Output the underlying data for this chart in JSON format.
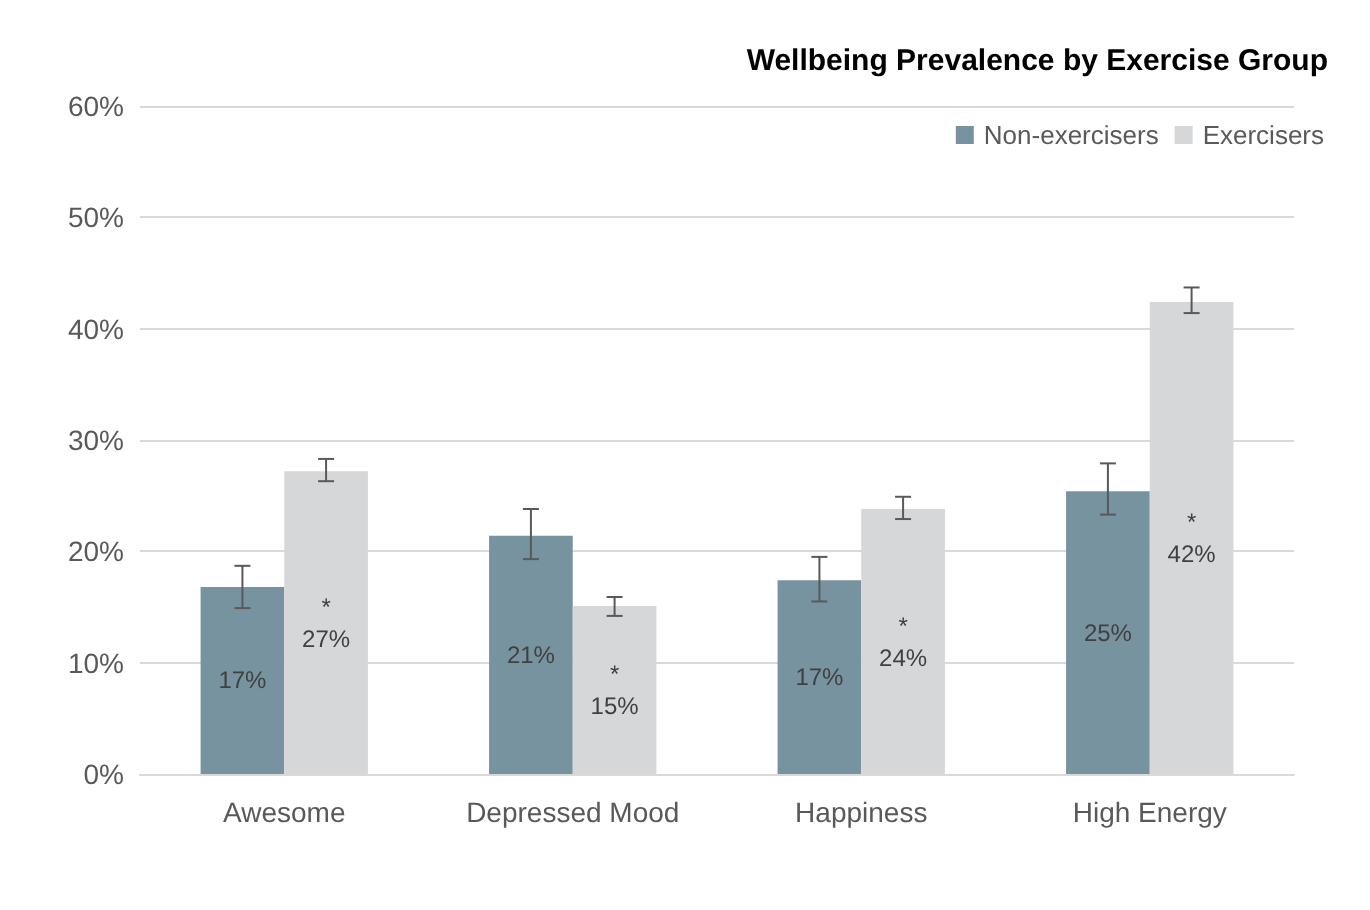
{
  "chart_data": {
    "type": "bar",
    "title": "Wellbeing Prevalence by Exercise Group",
    "categories": [
      "Awesome",
      "Depressed Mood",
      "Happiness",
      "High Energy"
    ],
    "series": [
      {
        "name": "Non-exercisers",
        "color": "#7793a0",
        "values": [
          16.8,
          21.4,
          17.4,
          25.4
        ],
        "errors": [
          [
            14.9,
            18.7
          ],
          [
            19.3,
            23.8
          ],
          [
            15.5,
            19.5
          ],
          [
            23.3,
            27.9
          ]
        ],
        "value_labels": [
          "17%",
          "21%",
          "17%",
          "25%"
        ]
      },
      {
        "name": "Exercisers",
        "color": "#d6d7d9",
        "values": [
          27.2,
          15.1,
          23.8,
          42.4
        ],
        "errors": [
          [
            26.3,
            28.3
          ],
          [
            14.2,
            15.9
          ],
          [
            22.9,
            24.9
          ],
          [
            41.4,
            43.7
          ]
        ],
        "value_labels": [
          "*\n27%",
          "*\n15%",
          "*\n24%",
          "*\n42%"
        ]
      }
    ],
    "ylim": [
      0,
      60
    ],
    "yticks": [
      {
        "value": 0,
        "label": "0%"
      },
      {
        "value": 10,
        "label": "10%"
      },
      {
        "value": 20,
        "label": "20%"
      },
      {
        "value": 30,
        "label": "30%"
      },
      {
        "value": 40,
        "label": "40%"
      },
      {
        "value": 50,
        "label": "50%"
      },
      {
        "value": 60,
        "label": "60%"
      }
    ],
    "grid": "y",
    "legend": "top right"
  }
}
